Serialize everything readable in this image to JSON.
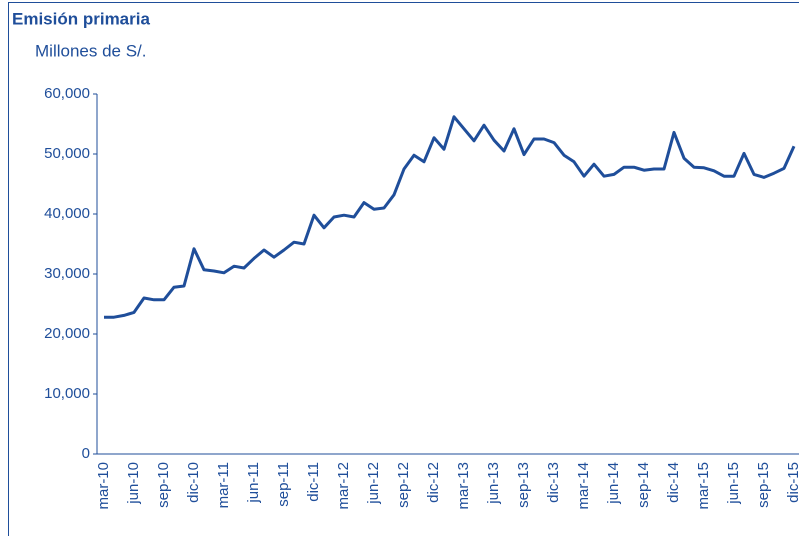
{
  "chart_data": {
    "type": "line",
    "title": "Emisión primaria",
    "subtitle": "Millones de S/.",
    "categories": [
      "mar-10",
      null,
      null,
      "jun-10",
      null,
      null,
      "sep-10",
      null,
      null,
      "dic-10",
      null,
      null,
      "mar-11",
      null,
      null,
      "jun-11",
      null,
      null,
      "sep-11",
      null,
      null,
      "dic-11",
      null,
      null,
      "mar-12",
      null,
      null,
      "jun-12",
      null,
      null,
      "sep-12",
      null,
      null,
      "dic-12",
      null,
      null,
      "mar-13",
      null,
      null,
      "jun-13",
      null,
      null,
      "sep-13",
      null,
      null,
      "dic-13",
      null,
      null,
      "mar-14",
      null,
      null,
      "jun-14",
      null,
      null,
      "sep-14",
      null,
      null,
      "dic-14",
      null,
      null,
      "mar-15",
      null,
      null,
      "jun-15",
      null,
      null,
      "sep-15",
      null,
      null,
      "dic-15"
    ],
    "series": [
      {
        "name": "Emisión primaria",
        "color": "#1f4e9a",
        "values": [
          22800,
          22800,
          23100,
          23600,
          26000,
          25700,
          25700,
          27800,
          28000,
          34200,
          30700,
          30500,
          30200,
          31300,
          31000,
          32600,
          34000,
          32800,
          34000,
          35300,
          35000,
          39800,
          37700,
          39500,
          39800,
          39500,
          41900,
          40800,
          41000,
          43200,
          47500,
          49800,
          48700,
          52700,
          50800,
          56200,
          54200,
          52200,
          54800,
          52300,
          50500,
          54200,
          49900,
          52500,
          52500,
          51900,
          49800,
          48700,
          46300,
          48300,
          46300,
          46600,
          47800,
          47800,
          47300,
          47500,
          47500,
          53600,
          49300,
          47800,
          47700,
          47200,
          46300,
          46300,
          50100,
          46600,
          46100,
          46800,
          47600,
          51300
        ]
      }
    ],
    "ylim": [
      0,
      60000
    ],
    "yticks": [
      0,
      {
        "value": 10000,
        "label": "10,000"
      },
      {
        "value": 20000,
        "label": "20,000"
      },
      {
        "value": 30000,
        "label": "30,000"
      },
      {
        "value": 40000,
        "label": "40,000"
      },
      {
        "value": 50000,
        "label": "50,000"
      },
      {
        "value": 60000,
        "label": "60,000"
      }
    ],
    "grid": false
  }
}
